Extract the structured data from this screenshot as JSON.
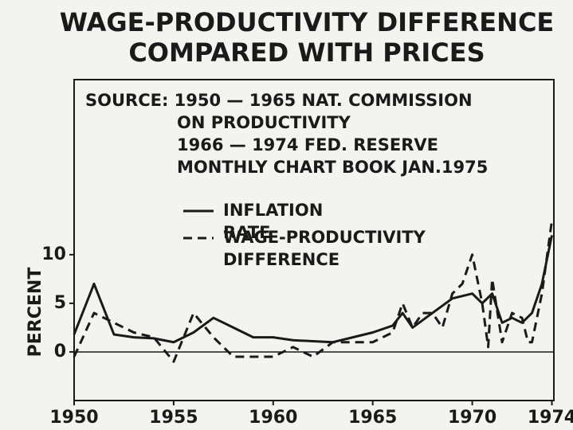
{
  "chart_data": {
    "type": "line",
    "title": "WAGE-PRODUCTIVITY DIFFERENCE",
    "subtitle": "COMPARED WITH PRICES",
    "annotations": [
      "SOURCE: 1950 — 1965 NAT. COMMISSION",
      "ON PRODUCTIVITY",
      "1966 — 1974 FED. RESERVE",
      "MONTHLY CHART BOOK JAN.1975"
    ],
    "y_label": "PERCENT",
    "xlim": [
      1950,
      1974.1
    ],
    "xticks": [
      1950,
      1955,
      1960,
      1965,
      1970,
      1974
    ],
    "ylim": [
      -5,
      28
    ],
    "yticks": [
      0,
      5,
      10
    ],
    "series": [
      {
        "name": "INFLATION RATE",
        "color": "#1a1a1a",
        "style": "solid",
        "x": [
          1950,
          1951,
          1952,
          1953,
          1954,
          1955,
          1956,
          1957,
          1958,
          1959,
          1960,
          1961,
          1962,
          1963,
          1964,
          1965,
          1966,
          1966.5,
          1967,
          1968,
          1969,
          1970,
          1970.5,
          1971,
          1971.5,
          1972,
          1972.5,
          1973,
          1973.5,
          1974
        ],
        "values": [
          1.8,
          7,
          1.8,
          1.5,
          1.4,
          1.0,
          2.0,
          3.5,
          2.5,
          1.5,
          1.5,
          1.2,
          1.1,
          1.0,
          1.5,
          2.0,
          2.7,
          4,
          2.5,
          4,
          5.5,
          6.0,
          5,
          6,
          3,
          3.5,
          3,
          4,
          7,
          12
        ]
      },
      {
        "name": "WAGE-PRODUCTIVITY DIFFERENCE",
        "color": "#1a1a1a",
        "style": "dashed",
        "x": [
          1950,
          1951,
          1952,
          1953,
          1954,
          1955,
          1956,
          1957,
          1958,
          1959,
          1960,
          1961,
          1962,
          1963,
          1964,
          1965,
          1966,
          1966.5,
          1967,
          1967.5,
          1968,
          1968.5,
          1969,
          1969.5,
          1970,
          1970.5,
          1970.8,
          1971,
          1971.5,
          1972,
          1972.5,
          1972.8,
          1973,
          1973.5,
          1974
        ],
        "values": [
          -0.5,
          4,
          3,
          2,
          1.5,
          -1,
          4,
          1.5,
          -0.5,
          -0.5,
          -0.5,
          0.5,
          -0.5,
          1,
          1,
          1,
          2,
          5,
          2.5,
          4,
          4,
          2.5,
          6,
          7,
          10,
          5,
          0.5,
          7.5,
          1,
          4,
          3.5,
          1,
          1,
          6,
          13.5
        ]
      }
    ]
  }
}
